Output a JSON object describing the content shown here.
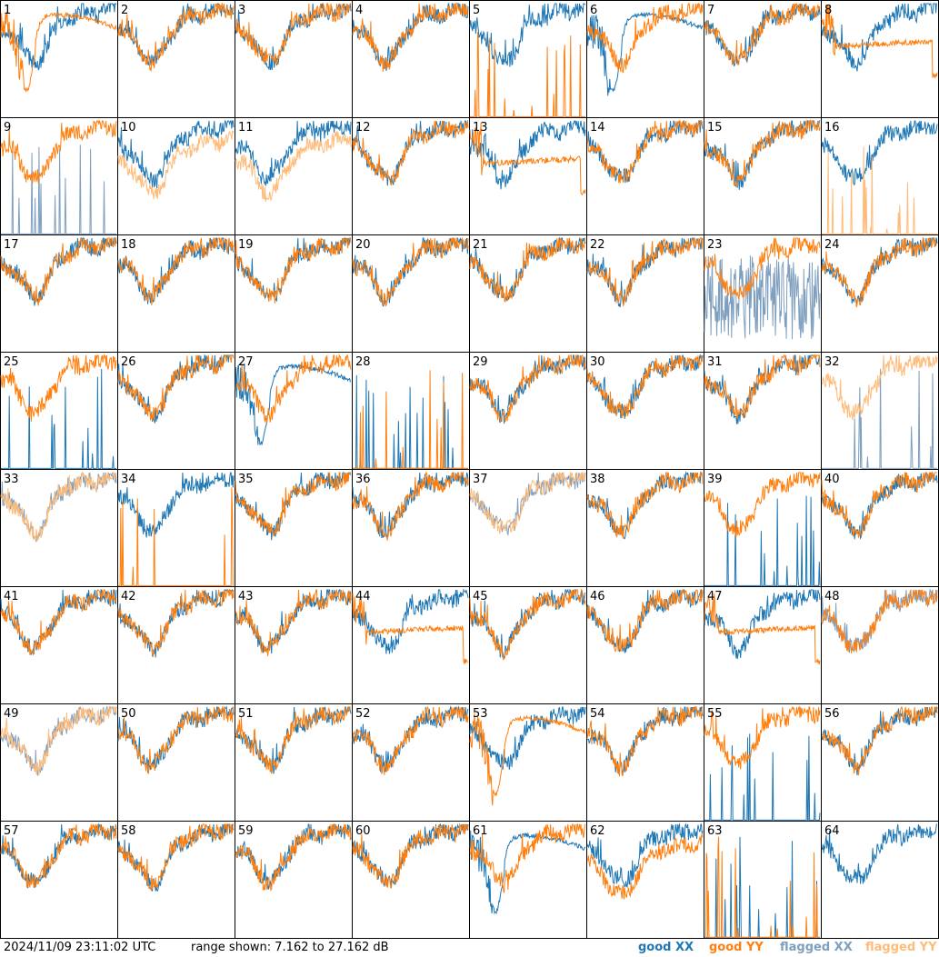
{
  "chart_data": {
    "type": "line",
    "panel_grid": {
      "rows": 8,
      "cols": 8
    },
    "ylim": [
      7.162,
      27.162
    ],
    "series_colors": {
      "good_xx": "#1f77b4",
      "good_yy": "#ff7f0e",
      "flagged_xx": "#7f9fbf",
      "flagged_yy": "#ffbb78"
    },
    "panels": [
      {
        "label": "1",
        "xx": "good",
        "yy": "good",
        "xx_shape": "normal",
        "yy_shape": "dip"
      },
      {
        "label": "2",
        "xx": "good",
        "yy": "good",
        "xx_shape": "normal",
        "yy_shape": "normal"
      },
      {
        "label": "3",
        "xx": "good",
        "yy": "good",
        "xx_shape": "normal",
        "yy_shape": "normal"
      },
      {
        "label": "4",
        "xx": "good",
        "yy": "good",
        "xx_shape": "normal",
        "yy_shape": "normal"
      },
      {
        "label": "5",
        "xx": "good",
        "yy": "good",
        "xx_shape": "normal",
        "yy_shape": "spikes"
      },
      {
        "label": "6",
        "xx": "good",
        "yy": "good",
        "xx_shape": "dip",
        "yy_shape": "normal"
      },
      {
        "label": "7",
        "xx": "good",
        "yy": "good",
        "xx_shape": "normal",
        "yy_shape": "normal"
      },
      {
        "label": "8",
        "xx": "good",
        "yy": "good",
        "xx_shape": "normal",
        "yy_shape": "flat"
      },
      {
        "label": "9",
        "xx": "flagged",
        "yy": "good",
        "xx_shape": "spikes",
        "yy_shape": "normal"
      },
      {
        "label": "10",
        "xx": "good",
        "yy": "flagged",
        "xx_shape": "normal",
        "yy_shape": "low"
      },
      {
        "label": "11",
        "xx": "good",
        "yy": "flagged",
        "xx_shape": "normal",
        "yy_shape": "low"
      },
      {
        "label": "12",
        "xx": "good",
        "yy": "good",
        "xx_shape": "normal",
        "yy_shape": "normal"
      },
      {
        "label": "13",
        "xx": "good",
        "yy": "good",
        "xx_shape": "normal",
        "yy_shape": "flat"
      },
      {
        "label": "14",
        "xx": "good",
        "yy": "good",
        "xx_shape": "normal",
        "yy_shape": "normal"
      },
      {
        "label": "15",
        "xx": "good",
        "yy": "good",
        "xx_shape": "normal",
        "yy_shape": "normal"
      },
      {
        "label": "16",
        "xx": "good",
        "yy": "flagged",
        "xx_shape": "normal",
        "yy_shape": "spikes"
      },
      {
        "label": "17",
        "xx": "good",
        "yy": "good",
        "xx_shape": "normal",
        "yy_shape": "normal"
      },
      {
        "label": "18",
        "xx": "good",
        "yy": "good",
        "xx_shape": "normal",
        "yy_shape": "normal"
      },
      {
        "label": "19",
        "xx": "good",
        "yy": "good",
        "xx_shape": "normal",
        "yy_shape": "normal"
      },
      {
        "label": "20",
        "xx": "good",
        "yy": "good",
        "xx_shape": "normal",
        "yy_shape": "normal"
      },
      {
        "label": "21",
        "xx": "good",
        "yy": "good",
        "xx_shape": "normal",
        "yy_shape": "normal"
      },
      {
        "label": "22",
        "xx": "good",
        "yy": "good",
        "xx_shape": "normal",
        "yy_shape": "normal"
      },
      {
        "label": "23",
        "xx": "flagged",
        "yy": "good",
        "xx_shape": "noisy",
        "yy_shape": "normal"
      },
      {
        "label": "24",
        "xx": "good",
        "yy": "good",
        "xx_shape": "normal",
        "yy_shape": "normal"
      },
      {
        "label": "25",
        "xx": "good",
        "yy": "good",
        "xx_shape": "spikes",
        "yy_shape": "normal"
      },
      {
        "label": "26",
        "xx": "good",
        "yy": "good",
        "xx_shape": "normal",
        "yy_shape": "normal"
      },
      {
        "label": "27",
        "xx": "good",
        "yy": "good",
        "xx_shape": "dip",
        "yy_shape": "normal"
      },
      {
        "label": "28",
        "xx": "good",
        "yy": "good",
        "xx_shape": "spikes",
        "yy_shape": "spikes"
      },
      {
        "label": "29",
        "xx": "good",
        "yy": "good",
        "xx_shape": "normal",
        "yy_shape": "normal"
      },
      {
        "label": "30",
        "xx": "good",
        "yy": "good",
        "xx_shape": "normal",
        "yy_shape": "normal"
      },
      {
        "label": "31",
        "xx": "good",
        "yy": "good",
        "xx_shape": "normal",
        "yy_shape": "normal"
      },
      {
        "label": "32",
        "xx": "flagged",
        "yy": "flagged",
        "xx_shape": "spikes",
        "yy_shape": "normal"
      },
      {
        "label": "33",
        "xx": "flagged",
        "yy": "flagged",
        "xx_shape": "normal",
        "yy_shape": "normal"
      },
      {
        "label": "34",
        "xx": "good",
        "yy": "good",
        "xx_shape": "normal",
        "yy_shape": "spikes"
      },
      {
        "label": "35",
        "xx": "good",
        "yy": "good",
        "xx_shape": "normal",
        "yy_shape": "normal"
      },
      {
        "label": "36",
        "xx": "good",
        "yy": "good",
        "xx_shape": "normal",
        "yy_shape": "normal"
      },
      {
        "label": "37",
        "xx": "flagged",
        "yy": "flagged",
        "xx_shape": "normal",
        "yy_shape": "normal"
      },
      {
        "label": "38",
        "xx": "good",
        "yy": "good",
        "xx_shape": "normal",
        "yy_shape": "normal"
      },
      {
        "label": "39",
        "xx": "good",
        "yy": "good",
        "xx_shape": "spikes",
        "yy_shape": "normal"
      },
      {
        "label": "40",
        "xx": "good",
        "yy": "good",
        "xx_shape": "normal",
        "yy_shape": "normal"
      },
      {
        "label": "41",
        "xx": "good",
        "yy": "good",
        "xx_shape": "normal",
        "yy_shape": "normal"
      },
      {
        "label": "42",
        "xx": "good",
        "yy": "good",
        "xx_shape": "normal",
        "yy_shape": "normal"
      },
      {
        "label": "43",
        "xx": "good",
        "yy": "good",
        "xx_shape": "normal",
        "yy_shape": "normal"
      },
      {
        "label": "44",
        "xx": "good",
        "yy": "good",
        "xx_shape": "normal",
        "yy_shape": "flat"
      },
      {
        "label": "45",
        "xx": "good",
        "yy": "good",
        "xx_shape": "normal",
        "yy_shape": "normal"
      },
      {
        "label": "46",
        "xx": "good",
        "yy": "good",
        "xx_shape": "normal",
        "yy_shape": "normal"
      },
      {
        "label": "47",
        "xx": "good",
        "yy": "good",
        "xx_shape": "normal",
        "yy_shape": "flat"
      },
      {
        "label": "48",
        "xx": "flagged",
        "yy": "good",
        "xx_shape": "normal",
        "yy_shape": "normal"
      },
      {
        "label": "49",
        "xx": "flagged",
        "yy": "flagged",
        "xx_shape": "normal",
        "yy_shape": "normal"
      },
      {
        "label": "50",
        "xx": "good",
        "yy": "good",
        "xx_shape": "normal",
        "yy_shape": "normal"
      },
      {
        "label": "51",
        "xx": "good",
        "yy": "good",
        "xx_shape": "normal",
        "yy_shape": "normal"
      },
      {
        "label": "52",
        "xx": "good",
        "yy": "good",
        "xx_shape": "normal",
        "yy_shape": "normal"
      },
      {
        "label": "53",
        "xx": "good",
        "yy": "good",
        "xx_shape": "normal",
        "yy_shape": "dip"
      },
      {
        "label": "54",
        "xx": "good",
        "yy": "good",
        "xx_shape": "normal",
        "yy_shape": "normal"
      },
      {
        "label": "55",
        "xx": "good",
        "yy": "good",
        "xx_shape": "spikes",
        "yy_shape": "normal"
      },
      {
        "label": "56",
        "xx": "good",
        "yy": "good",
        "xx_shape": "normal",
        "yy_shape": "normal"
      },
      {
        "label": "57",
        "xx": "good",
        "yy": "good",
        "xx_shape": "normal",
        "yy_shape": "normal"
      },
      {
        "label": "58",
        "xx": "good",
        "yy": "good",
        "xx_shape": "normal",
        "yy_shape": "normal"
      },
      {
        "label": "59",
        "xx": "good",
        "yy": "good",
        "xx_shape": "normal",
        "yy_shape": "normal"
      },
      {
        "label": "60",
        "xx": "good",
        "yy": "good",
        "xx_shape": "normal",
        "yy_shape": "normal"
      },
      {
        "label": "61",
        "xx": "good",
        "yy": "good",
        "xx_shape": "dip",
        "yy_shape": "normal"
      },
      {
        "label": "62",
        "xx": "good",
        "yy": "good",
        "xx_shape": "normal",
        "yy_shape": "low"
      },
      {
        "label": "63",
        "xx": "good",
        "yy": "good",
        "xx_shape": "spikes",
        "yy_shape": "spikes"
      },
      {
        "label": "64",
        "xx": "good",
        "yy": "good",
        "xx_shape": "normal",
        "yy_shape": "none"
      }
    ]
  },
  "footer": {
    "timestamp": "2024/11/09 23:11:02 UTC",
    "range_text": "range shown: 7.162 to 27.162 dB",
    "legend_good_xx": "good XX",
    "legend_good_yy": "good YY",
    "legend_flagged_xx": "flagged XX",
    "legend_flagged_yy": "flagged YY"
  }
}
